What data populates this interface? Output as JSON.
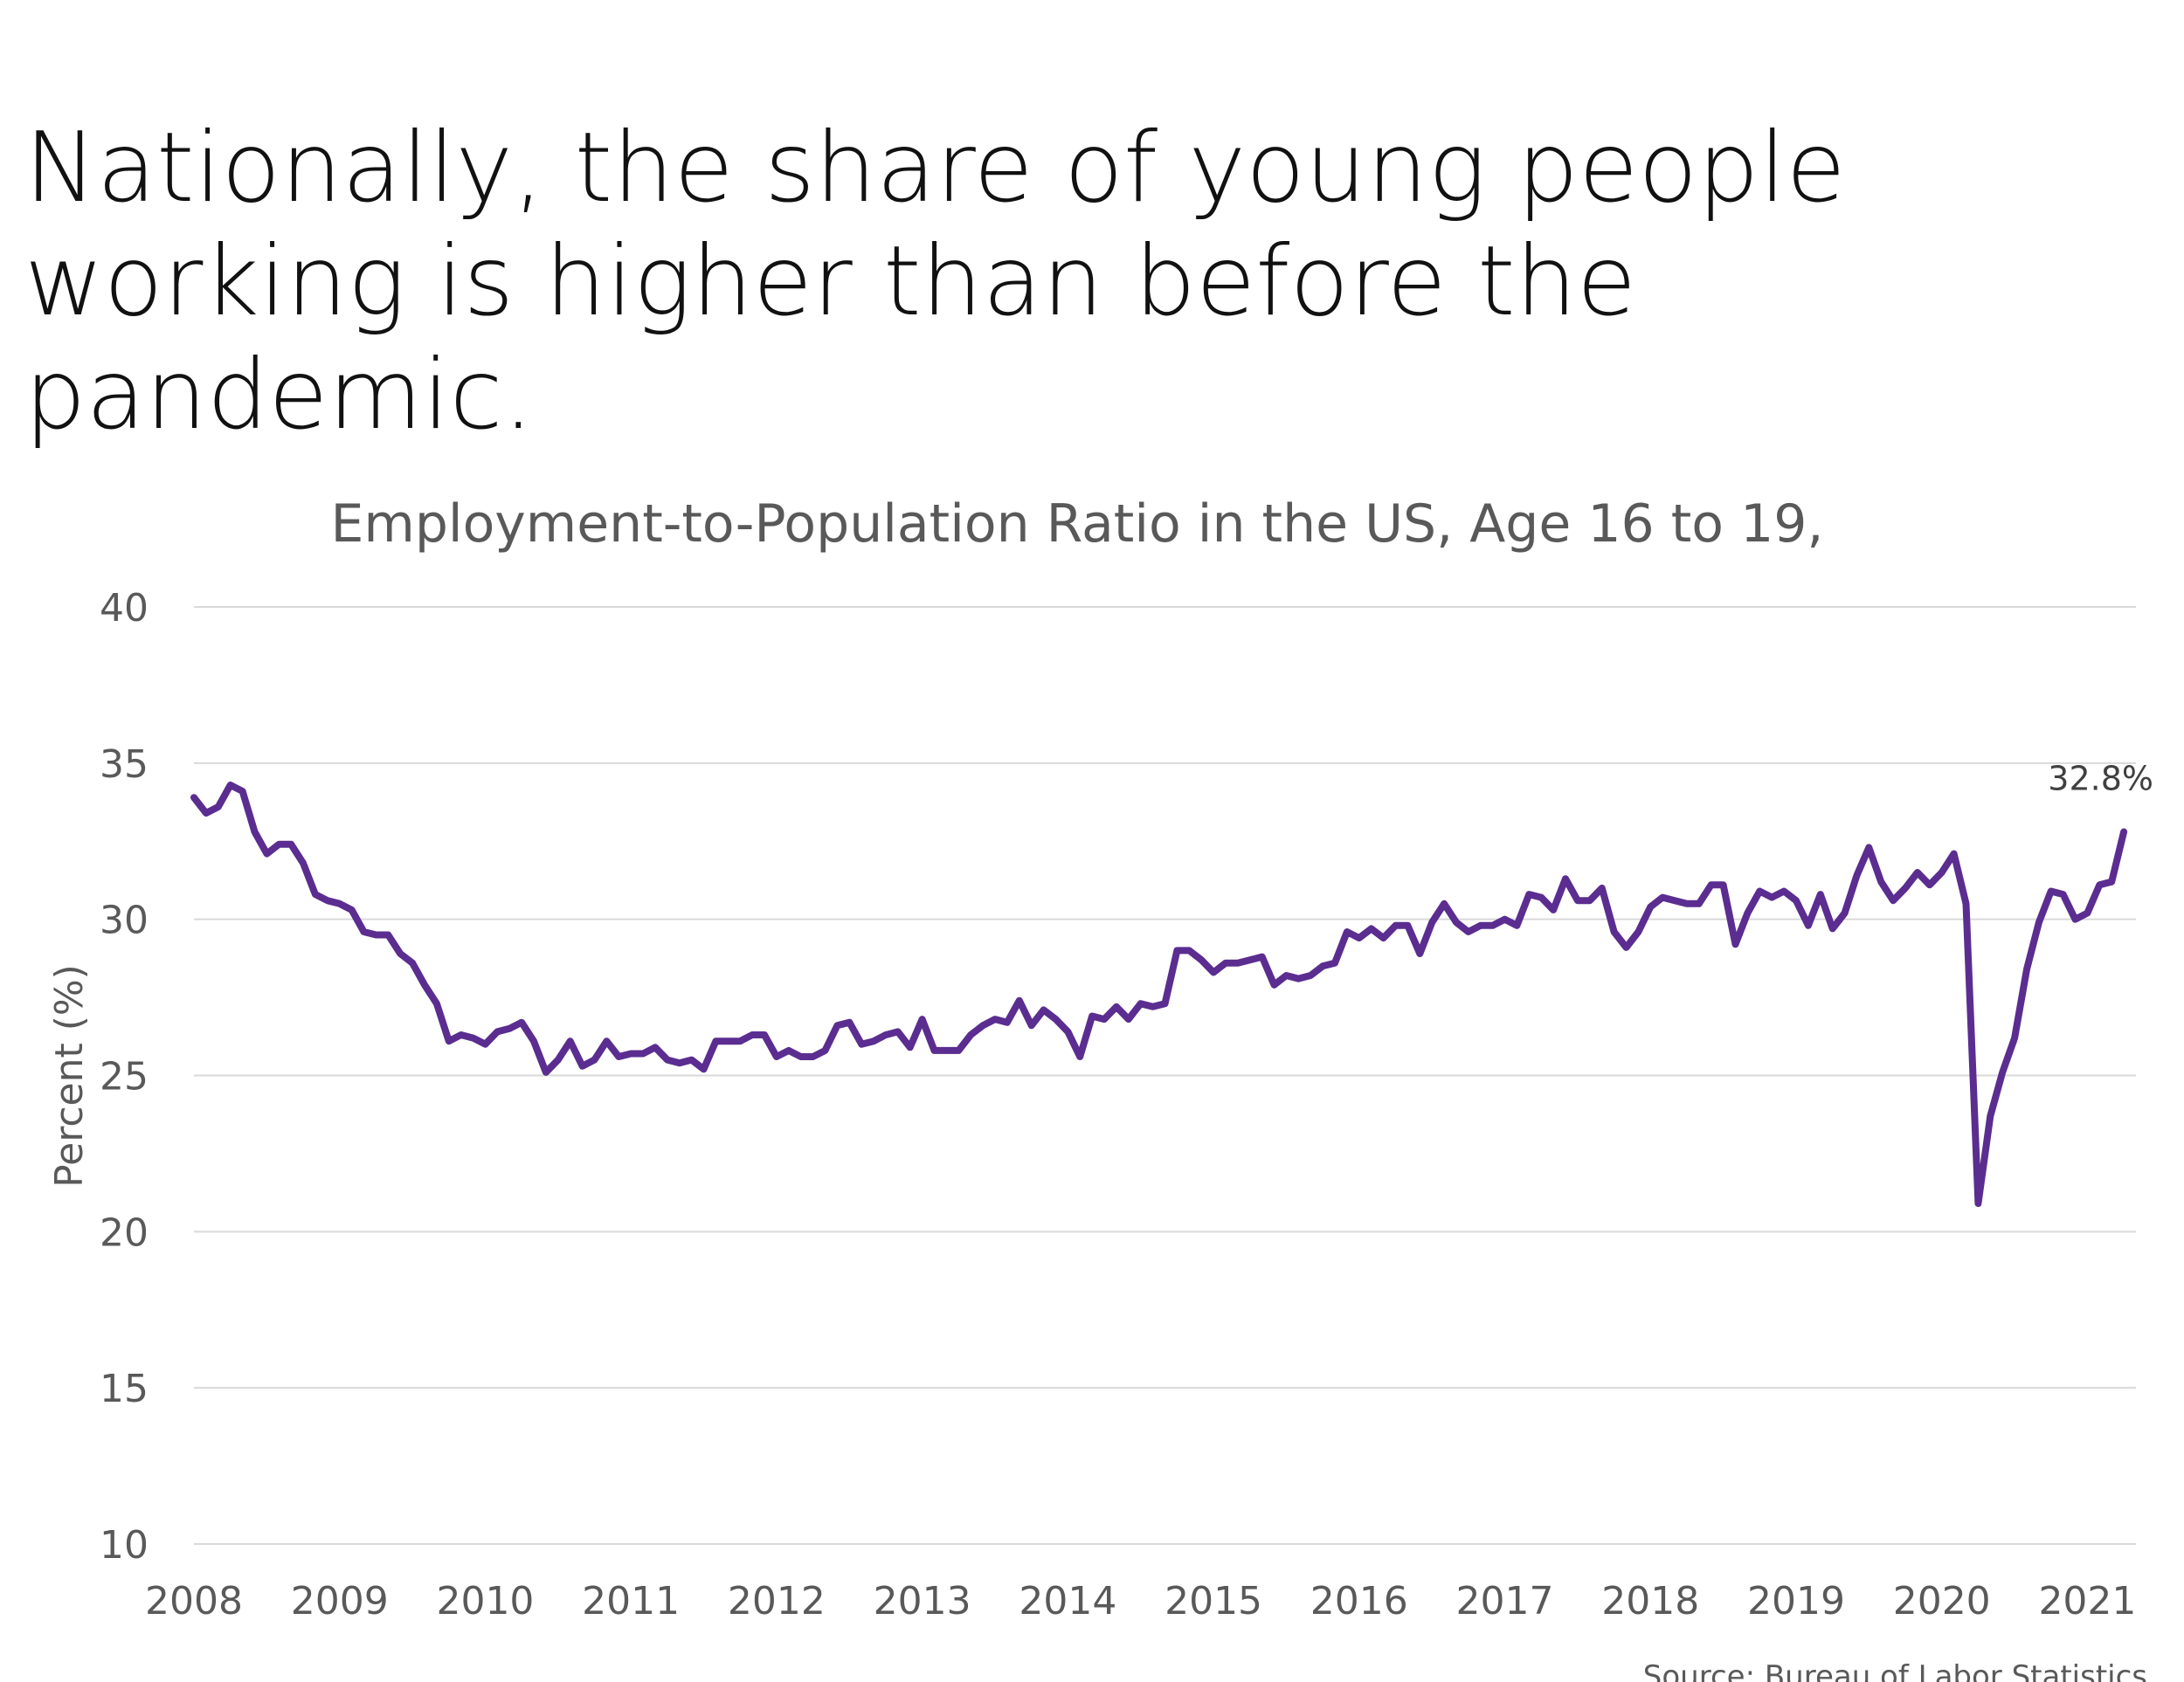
{
  "headline": {
    "lines": [
      "Nationally, the share of young people",
      "working is higher than before the",
      "pandemic."
    ]
  },
  "chart_data": {
    "type": "line",
    "title": "Employment-to-Population Ratio in the US, Age 16 to 19,",
    "ylabel": "Percent (%)",
    "xlabel": "",
    "ylim": [
      10,
      40
    ],
    "yticks": [
      10,
      15,
      20,
      25,
      30,
      35,
      40
    ],
    "xlim": [
      2008.0,
      2021.3333
    ],
    "xticks": [
      2008,
      2009,
      2010,
      2011,
      2012,
      2013,
      2014,
      2015,
      2016,
      2017,
      2018,
      2019,
      2020,
      2021
    ],
    "grid": true,
    "line_color": "#5b2d90",
    "series": [
      {
        "values": [
          33.9,
          33.4,
          33.6,
          34.3,
          34.1,
          32.8,
          32.1,
          32.4,
          32.4,
          31.8,
          30.8,
          30.6,
          30.5,
          30.3,
          29.6,
          29.5,
          29.5,
          28.9,
          28.6,
          27.9,
          27.3,
          26.1,
          26.3,
          26.2,
          26.0,
          26.4,
          26.5,
          26.7,
          26.1,
          25.1,
          25.5,
          26.1,
          25.3,
          25.5,
          26.1,
          25.6,
          25.7,
          25.7,
          25.9,
          25.5,
          25.4,
          25.5,
          25.2,
          26.1,
          26.1,
          26.1,
          26.3,
          26.3,
          25.6,
          25.8,
          25.6,
          25.6,
          25.8,
          26.6,
          26.7,
          26.0,
          26.1,
          26.3,
          26.4,
          25.9,
          26.8,
          25.8,
          25.8,
          25.8,
          26.3,
          26.6,
          26.8,
          26.7,
          27.4,
          26.6,
          27.1,
          26.8,
          26.4,
          25.6,
          26.9,
          26.8,
          27.2,
          26.8,
          27.3,
          27.2,
          27.3,
          29.0,
          29.0,
          28.7,
          28.3,
          28.6,
          28.6,
          28.7,
          28.8,
          27.9,
          28.2,
          28.1,
          28.2,
          28.5,
          28.6,
          29.6,
          29.4,
          29.7,
          29.4,
          29.8,
          29.8,
          28.9,
          29.9,
          30.5,
          29.9,
          29.6,
          29.8,
          29.8,
          30.0,
          29.8,
          30.8,
          30.7,
          30.3,
          31.3,
          30.6,
          30.6,
          31.0,
          29.6,
          29.1,
          29.6,
          30.4,
          30.7,
          30.6,
          30.5,
          30.5,
          31.1,
          31.1,
          29.2,
          30.2,
          30.9,
          30.7,
          30.9,
          30.6,
          29.8,
          30.8,
          29.7,
          30.2,
          31.4,
          32.3,
          31.2,
          30.6,
          31.0,
          31.5,
          31.1,
          31.5,
          32.1,
          30.5,
          20.9,
          23.7,
          25.1,
          26.2,
          28.4,
          29.9,
          30.9,
          30.8,
          30.0,
          30.2,
          31.1,
          31.2,
          32.8
        ]
      }
    ],
    "x_start": 2008.0,
    "x_step_months": 1,
    "annotations": [
      {
        "text": "32.8%",
        "x": 2021.3333,
        "y": 32.8
      }
    ],
    "source": "Source: Bureau of Labor Statistics"
  }
}
